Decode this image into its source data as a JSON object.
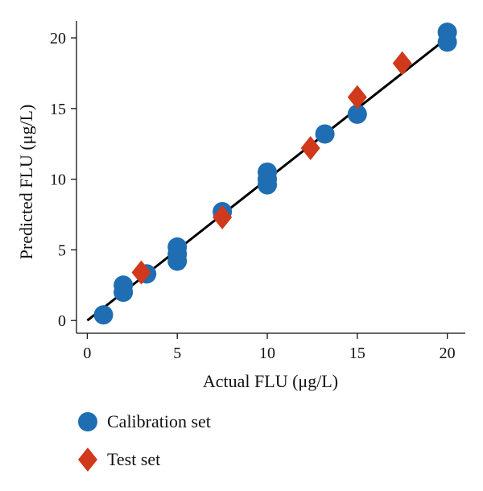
{
  "chart_data": {
    "type": "scatter",
    "title": "",
    "xlabel": "Actual FLU (μg/L)",
    "ylabel": "Predicted FLU (μg/L)",
    "xlim": [
      -0.6,
      21
    ],
    "ylim": [
      -0.9,
      21.2
    ],
    "x_ticks": [
      0,
      5,
      10,
      15,
      20
    ],
    "y_ticks": [
      0,
      5,
      10,
      15,
      20
    ],
    "grid": false,
    "legend_position": "bottom-left",
    "fit_line": {
      "x": [
        0,
        20
      ],
      "y": [
        0,
        20
      ],
      "color": "#000000"
    },
    "series": [
      {
        "name": "Calibration set",
        "marker": "circle",
        "color": "#1f6db2",
        "points": [
          {
            "x": 0.9,
            "y": 0.4
          },
          {
            "x": 2.0,
            "y": 2.0
          },
          {
            "x": 2.0,
            "y": 2.5
          },
          {
            "x": 3.3,
            "y": 3.3
          },
          {
            "x": 5.0,
            "y": 4.2
          },
          {
            "x": 5.0,
            "y": 4.7
          },
          {
            "x": 5.0,
            "y": 5.2
          },
          {
            "x": 7.5,
            "y": 7.7
          },
          {
            "x": 10.0,
            "y": 9.6
          },
          {
            "x": 10.0,
            "y": 10.0
          },
          {
            "x": 10.0,
            "y": 10.5
          },
          {
            "x": 13.2,
            "y": 13.2
          },
          {
            "x": 15.0,
            "y": 14.6
          },
          {
            "x": 20.0,
            "y": 19.7
          },
          {
            "x": 20.0,
            "y": 20.4
          }
        ]
      },
      {
        "name": "Test set",
        "marker": "diamond",
        "color": "#d0391b",
        "points": [
          {
            "x": 3.0,
            "y": 3.4
          },
          {
            "x": 7.5,
            "y": 7.3
          },
          {
            "x": 12.4,
            "y": 12.2
          },
          {
            "x": 15.0,
            "y": 15.8
          },
          {
            "x": 17.5,
            "y": 18.2
          }
        ]
      }
    ]
  }
}
